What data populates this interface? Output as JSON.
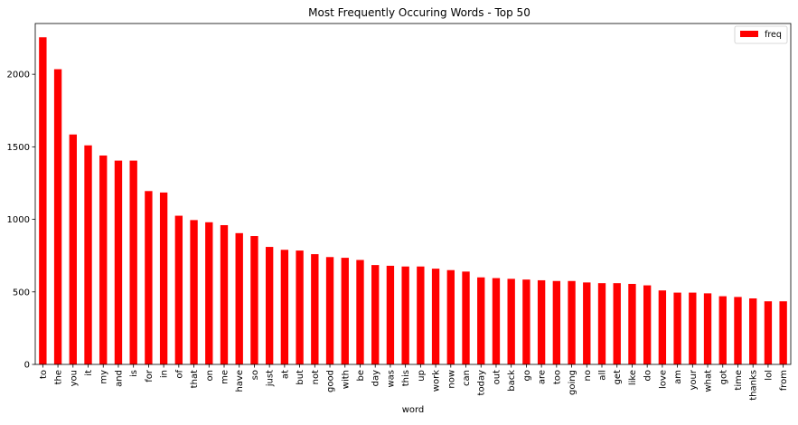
{
  "chart_data": {
    "type": "bar",
    "title": "Most Frequently Occuring Words - Top 50",
    "xlabel": "word",
    "ylabel": "",
    "ylim": [
      0,
      2350
    ],
    "yticks": [
      0,
      500,
      1000,
      1500,
      2000
    ],
    "grid": false,
    "legend_position": "top-right",
    "bar_color": "#ff0000",
    "categories": [
      "to",
      "the",
      "you",
      "it",
      "my",
      "and",
      "is",
      "for",
      "in",
      "of",
      "that",
      "on",
      "me",
      "have",
      "so",
      "just",
      "at",
      "but",
      "not",
      "good",
      "with",
      "be",
      "day",
      "was",
      "this",
      "up",
      "work",
      "now",
      "can",
      "today",
      "out",
      "back",
      "go",
      "are",
      "too",
      "going",
      "no",
      "all",
      "get",
      "like",
      "do",
      "love",
      "am",
      "your",
      "what",
      "got",
      "time",
      "thanks",
      "lol",
      "from"
    ],
    "series": [
      {
        "name": "freq",
        "values": [
          2255,
          2035,
          1585,
          1510,
          1440,
          1405,
          1405,
          1195,
          1185,
          1025,
          995,
          980,
          960,
          905,
          885,
          810,
          790,
          785,
          760,
          740,
          735,
          720,
          685,
          680,
          675,
          675,
          660,
          650,
          640,
          600,
          595,
          590,
          585,
          580,
          575,
          575,
          565,
          560,
          560,
          555,
          545,
          510,
          495,
          495,
          490,
          470,
          465,
          455,
          435,
          435
        ]
      }
    ]
  }
}
